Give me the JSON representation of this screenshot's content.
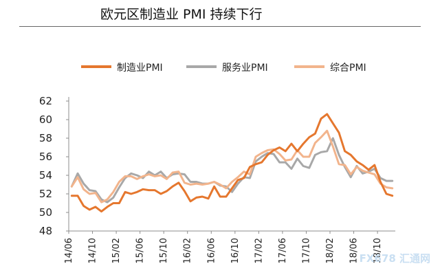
{
  "title": "欧元区制造业 PMI 持续下行",
  "watermark": "FX678 汇通网",
  "chart_data": {
    "type": "line",
    "title": "欧元区制造业 PMI 持续下行",
    "xlabel": "",
    "ylabel": "",
    "ylim": [
      48,
      62
    ],
    "yticks": [
      48,
      50,
      52,
      54,
      56,
      58,
      60,
      62
    ],
    "x_start": "14/06",
    "x_end": "18/12",
    "xticks": [
      "14/06",
      "14/10",
      "15/02",
      "15/06",
      "15/10",
      "16/02",
      "16/06",
      "16/10",
      "17/02",
      "17/06",
      "17/10",
      "18/02",
      "18/06",
      "18/10"
    ],
    "legend_position": "top",
    "grid": false,
    "series": [
      {
        "name": "制造业PMI",
        "color": "#e5772e",
        "values": [
          51.8,
          51.8,
          50.7,
          50.3,
          50.6,
          50.1,
          50.6,
          51.0,
          51.0,
          52.2,
          52.0,
          52.2,
          52.5,
          52.4,
          52.4,
          52.0,
          52.3,
          52.8,
          53.2,
          52.3,
          51.2,
          51.6,
          51.7,
          51.5,
          52.8,
          51.7,
          51.7,
          52.6,
          53.5,
          53.7,
          54.9,
          55.2,
          55.4,
          56.2,
          56.7,
          57.0,
          56.6,
          57.4,
          56.6,
          57.4,
          58.1,
          58.5,
          60.1,
          60.6,
          59.6,
          58.6,
          56.6,
          56.2,
          55.5,
          55.1,
          54.6,
          55.1,
          53.3,
          52.0,
          51.8
        ]
      },
      {
        "name": "服务业PMI",
        "color": "#a8a8a8",
        "values": [
          52.8,
          54.2,
          53.1,
          52.4,
          52.3,
          51.4,
          51.1,
          51.6,
          52.7,
          53.7,
          54.2,
          54.0,
          53.7,
          54.4,
          54.0,
          54.4,
          53.7,
          54.1,
          54.2,
          54.1,
          53.3,
          53.3,
          53.1,
          53.1,
          53.3,
          52.9,
          52.8,
          52.2,
          53.1,
          53.8,
          53.7,
          55.5,
          56.0,
          56.4,
          56.3,
          55.4,
          55.4,
          54.7,
          55.8,
          55.0,
          54.8,
          56.2,
          56.5,
          56.6,
          58.0,
          56.2,
          54.9,
          53.8,
          55.0,
          54.2,
          54.4,
          54.7,
          53.7,
          53.4,
          53.4
        ]
      },
      {
        "name": "综合PMI",
        "color": "#f2b48c",
        "values": [
          52.8,
          53.8,
          52.5,
          52.0,
          52.1,
          51.1,
          51.4,
          52.2,
          53.3,
          53.9,
          53.9,
          53.6,
          53.9,
          54.1,
          53.9,
          54.0,
          53.6,
          54.3,
          54.4,
          53.2,
          53.0,
          53.1,
          53.0,
          53.1,
          53.3,
          53.0,
          52.6,
          53.3,
          53.8,
          54.4,
          54.1,
          56.0,
          56.4,
          56.7,
          56.8,
          56.3,
          55.6,
          55.7,
          56.7,
          56.0,
          56.0,
          57.5,
          58.1,
          58.8,
          57.1,
          55.2,
          55.1,
          54.1,
          54.9,
          54.5,
          54.3,
          54.1,
          53.1,
          52.7,
          52.6
        ]
      }
    ]
  }
}
